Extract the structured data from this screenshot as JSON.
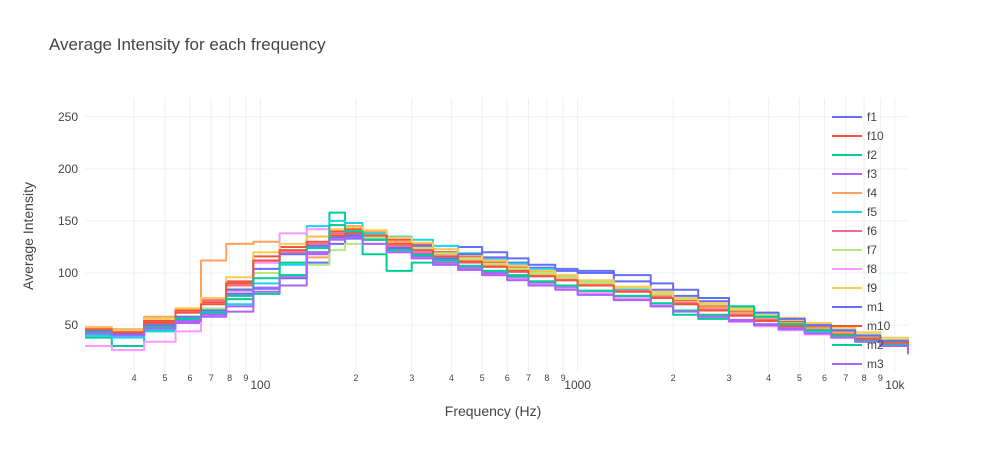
{
  "chart_data": {
    "type": "line",
    "title": "Average Intensity for each frequency",
    "xlabel": "Frequency (Hz)",
    "ylabel": "Average Intensity",
    "x_scale": "log",
    "xlim": [
      28,
      11000
    ],
    "ylim": [
      5,
      268
    ],
    "grid": true,
    "legend_position": "right",
    "y_ticks": [
      "50",
      "100",
      "150",
      "200",
      "250"
    ],
    "x_major_ticks": [
      "100",
      "1000",
      "10k"
    ],
    "x_minor_ticks": [
      {
        "x": 40,
        "label": "4"
      },
      {
        "x": 50,
        "label": "5"
      },
      {
        "x": 60,
        "label": "6"
      },
      {
        "x": 70,
        "label": "7"
      },
      {
        "x": 80,
        "label": "8"
      },
      {
        "x": 90,
        "label": "9"
      },
      {
        "x": 200,
        "label": "2"
      },
      {
        "x": 300,
        "label": "3"
      },
      {
        "x": 400,
        "label": "4"
      },
      {
        "x": 500,
        "label": "5"
      },
      {
        "x": 600,
        "label": "6"
      },
      {
        "x": 700,
        "label": "7"
      },
      {
        "x": 800,
        "label": "8"
      },
      {
        "x": 900,
        "label": "9"
      },
      {
        "x": 2000,
        "label": "2"
      },
      {
        "x": 3000,
        "label": "3"
      },
      {
        "x": 4000,
        "label": "4"
      },
      {
        "x": 5000,
        "label": "5"
      },
      {
        "x": 6000,
        "label": "6"
      },
      {
        "x": 7000,
        "label": "7"
      },
      {
        "x": 8000,
        "label": "8"
      },
      {
        "x": 9000,
        "label": "9"
      }
    ],
    "x": [
      28,
      34,
      43,
      54,
      65,
      78,
      95,
      115,
      140,
      165,
      185,
      210,
      250,
      300,
      350,
      420,
      500,
      600,
      700,
      850,
      1000,
      1300,
      1700,
      2000,
      2400,
      3000,
      3600,
      4300,
      5200,
      6300,
      7500,
      9000,
      11000
    ],
    "series": [
      {
        "name": "f1",
        "color": "#636efa",
        "values": [
          42,
          40,
          48,
          56,
          61,
          80,
          85,
          95,
          110,
          128,
          133,
          136,
          125,
          126,
          120,
          125,
          115,
          110,
          105,
          102,
          100,
          92,
          84,
          78,
          73,
          67,
          60,
          55,
          50,
          45,
          40,
          35,
          28
        ]
      },
      {
        "name": "f10",
        "color": "#ef553b",
        "values": [
          45,
          42,
          52,
          62,
          72,
          92,
          116,
          125,
          135,
          140,
          142,
          140,
          132,
          128,
          120,
          116,
          110,
          106,
          101,
          97,
          92,
          86,
          80,
          74,
          68,
          63,
          58,
          53,
          48,
          44,
          38,
          33,
          25
        ]
      },
      {
        "name": "f2",
        "color": "#00cc96",
        "values": [
          38,
          30,
          45,
          55,
          65,
          78,
          80,
          98,
          120,
          158,
          135,
          118,
          102,
          110,
          108,
          105,
          102,
          98,
          92,
          88,
          83,
          77,
          68,
          60,
          56,
          66,
          57,
          50,
          43,
          39,
          34,
          31,
          26
        ]
      },
      {
        "name": "f3",
        "color": "#ab63fa",
        "values": [
          44,
          40,
          48,
          52,
          58,
          63,
          82,
          88,
          118,
          136,
          140,
          132,
          122,
          116,
          110,
          105,
          100,
          95,
          90,
          86,
          81,
          75,
          69,
          64,
          59,
          55,
          51,
          47,
          43,
          40,
          35,
          30,
          23
        ]
      },
      {
        "name": "f4",
        "color": "#ffa15a",
        "values": [
          48,
          46,
          58,
          65,
          112,
          128,
          130,
          120,
          115,
          135,
          145,
          140,
          130,
          124,
          118,
          112,
          108,
          103,
          98,
          94,
          89,
          84,
          78,
          72,
          67,
          62,
          57,
          52,
          47,
          43,
          38,
          33,
          22
        ]
      },
      {
        "name": "f5",
        "color": "#19d3f3",
        "values": [
          40,
          38,
          44,
          54,
          60,
          70,
          90,
          108,
          145,
          150,
          148,
          138,
          135,
          132,
          126,
          119,
          113,
          109,
          104,
          98,
          92,
          84,
          76,
          70,
          65,
          60,
          54,
          49,
          44,
          41,
          37,
          34,
          27
        ]
      },
      {
        "name": "f6",
        "color": "#ff6692",
        "values": [
          46,
          44,
          54,
          66,
          74,
          88,
          110,
          120,
          128,
          138,
          140,
          135,
          126,
          120,
          114,
          110,
          106,
          101,
          97,
          93,
          88,
          83,
          77,
          71,
          65,
          60,
          55,
          50,
          45,
          41,
          36,
          31,
          24
        ]
      },
      {
        "name": "f7",
        "color": "#b6e880",
        "values": [
          42,
          41,
          50,
          58,
          66,
          85,
          100,
          110,
          108,
          122,
          128,
          134,
          128,
          124,
          119,
          114,
          109,
          104,
          100,
          96,
          91,
          86,
          80,
          75,
          70,
          65,
          60,
          55,
          50,
          46,
          41,
          36,
          26
        ]
      },
      {
        "name": "f8",
        "color": "#ff97ff",
        "values": [
          30,
          26,
          34,
          44,
          60,
          82,
          110,
          138,
          142,
          146,
          137,
          128,
          120,
          114,
          108,
          103,
          98,
          94,
          89,
          85,
          81,
          76,
          70,
          64,
          58,
          53,
          49,
          45,
          41,
          38,
          34,
          30,
          22
        ]
      },
      {
        "name": "f9",
        "color": "#fecb52",
        "values": [
          47,
          45,
          56,
          66,
          76,
          96,
          120,
          128,
          135,
          142,
          144,
          141,
          134,
          129,
          123,
          117,
          112,
          107,
          102,
          98,
          93,
          87,
          82,
          76,
          71,
          66,
          62,
          57,
          52,
          48,
          43,
          38,
          28
        ]
      },
      {
        "name": "m1",
        "color": "#636efa",
        "values": [
          44,
          42,
          50,
          58,
          64,
          84,
          104,
          118,
          126,
          134,
          136,
          132,
          124,
          118,
          114,
          118,
          120,
          114,
          108,
          104,
          102,
          98,
          90,
          84,
          76,
          68,
          62,
          56,
          50,
          45,
          40,
          35,
          26
        ]
      },
      {
        "name": "m10",
        "color": "#ef553b",
        "values": [
          46,
          43,
          54,
          64,
          70,
          90,
          112,
          122,
          130,
          136,
          138,
          136,
          128,
          122,
          116,
          111,
          106,
          102,
          97,
          93,
          88,
          82,
          76,
          70,
          64,
          59,
          54,
          49,
          45,
          41,
          37,
          33,
          24
        ]
      },
      {
        "name": "m2",
        "color": "#00cc96",
        "values": [
          43,
          40,
          48,
          56,
          62,
          75,
          95,
          110,
          124,
          146,
          140,
          132,
          122,
          117,
          112,
          107,
          102,
          97,
          92,
          88,
          83,
          78,
          71,
          64,
          60,
          68,
          58,
          51,
          45,
          40,
          35,
          31,
          23
        ]
      },
      {
        "name": "m3",
        "color": "#ab63fa",
        "values": [
          42,
          40,
          47,
          54,
          60,
          68,
          86,
          96,
          120,
          132,
          134,
          128,
          120,
          114,
          108,
          103,
          98,
          93,
          88,
          84,
          79,
          74,
          68,
          63,
          58,
          54,
          50,
          46,
          42,
          38,
          34,
          30,
          22
        ]
      }
    ]
  }
}
